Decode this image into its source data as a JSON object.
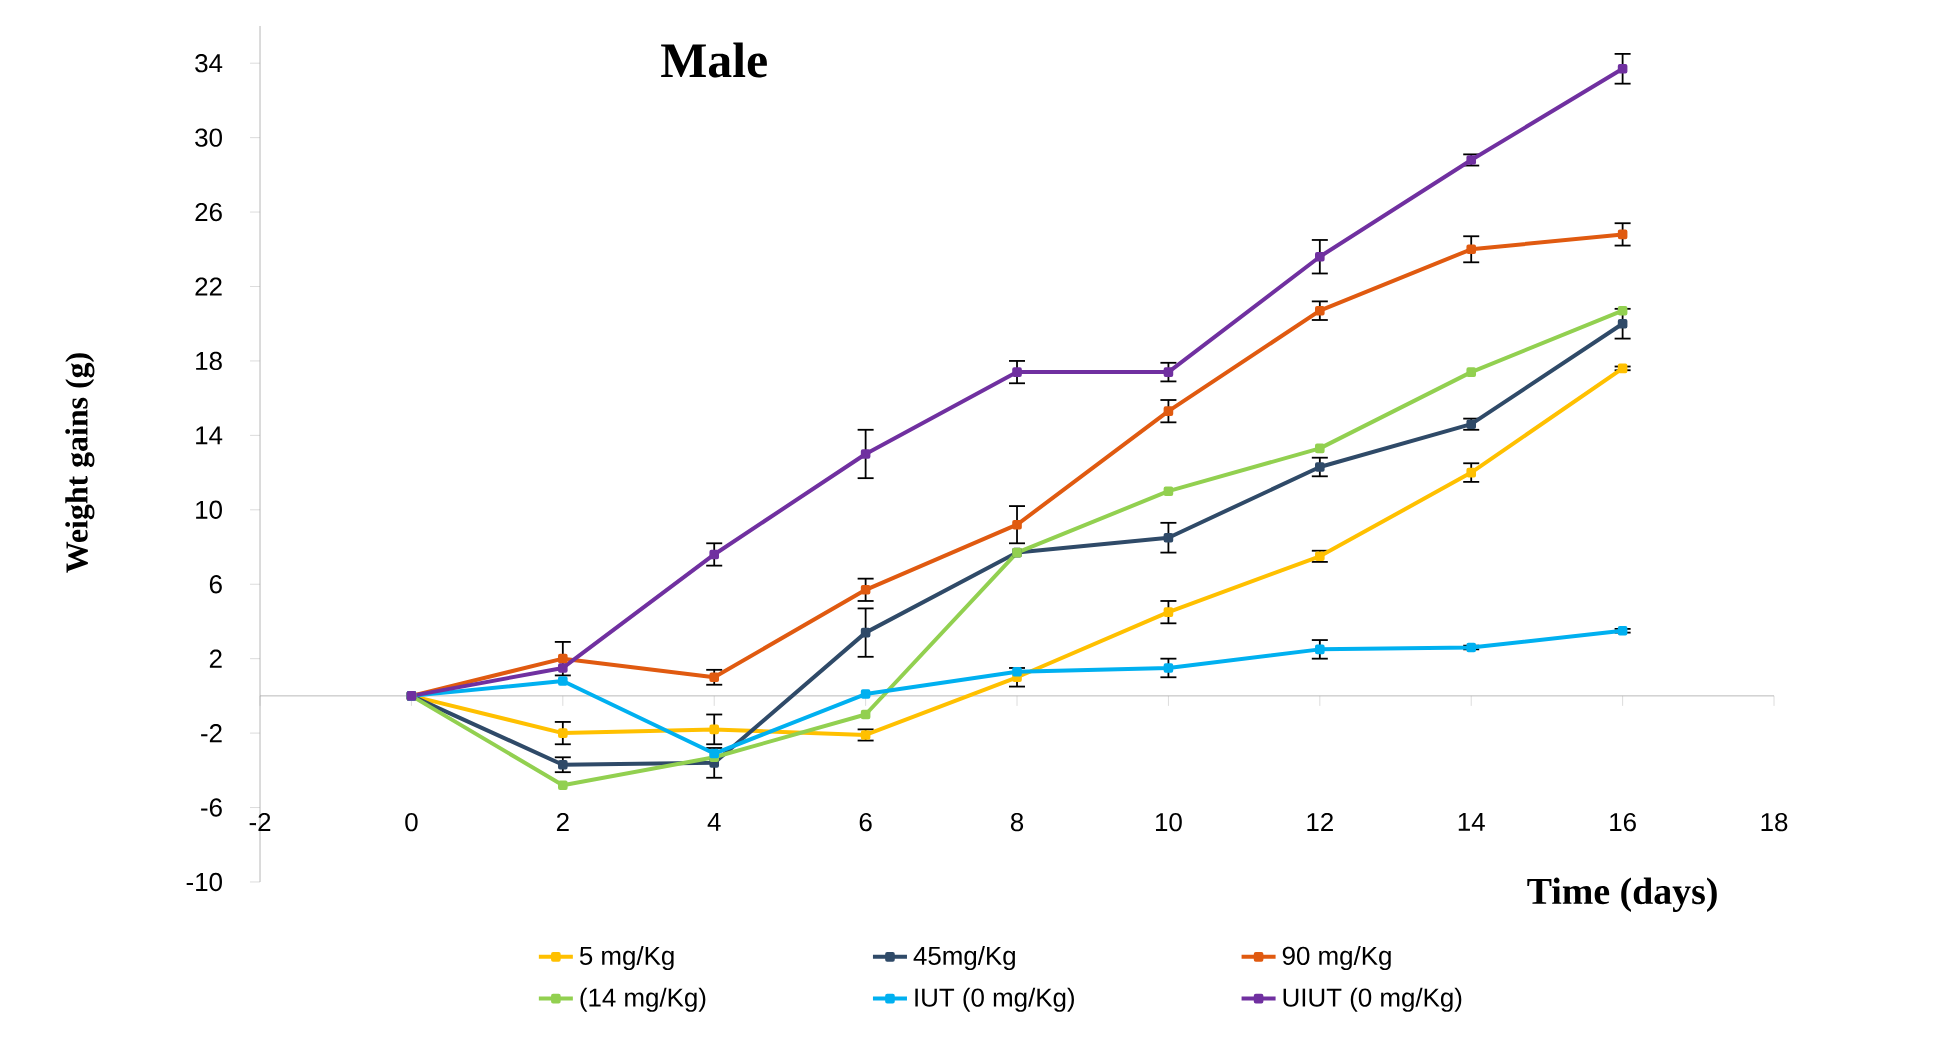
{
  "chart_data": {
    "type": "line",
    "title": "Male",
    "xlabel": "Time (days)",
    "ylabel": "Weight  gains (g)",
    "x": [
      0,
      2,
      4,
      6,
      8,
      10,
      12,
      14,
      16
    ],
    "xlim": [
      -2,
      18
    ],
    "xticks": [
      -2,
      0,
      2,
      4,
      6,
      8,
      10,
      12,
      14,
      16,
      18
    ],
    "ylim": [
      -10,
      36
    ],
    "yticks": [
      -10,
      -6,
      -2,
      2,
      6,
      10,
      14,
      18,
      22,
      26,
      30,
      34
    ],
    "legend": "bottom",
    "marker": "square",
    "line_style": "solid",
    "grid": false,
    "series": [
      {
        "name": "5 mg/Kg",
        "color": "#ffc000",
        "values": [
          0,
          -2,
          -1.8,
          -2.1,
          1,
          4.5,
          7.5,
          12,
          17.6
        ],
        "errors": [
          null,
          0.6,
          0.8,
          0.3,
          0.5,
          0.6,
          0.3,
          0.5,
          0.1
        ]
      },
      {
        "name": "45mg/Kg",
        "color": "#2f4a68",
        "values": [
          0,
          -3.7,
          -3.6,
          3.4,
          7.7,
          8.5,
          12.3,
          14.6,
          20
        ],
        "errors": [
          null,
          0.4,
          0.8,
          1.3,
          null,
          0.8,
          0.5,
          0.3,
          0.8
        ]
      },
      {
        "name": "90 mg/Kg",
        "color": "#e05a10",
        "values": [
          0,
          2,
          1,
          5.7,
          9.2,
          15.3,
          20.7,
          24,
          24.8
        ],
        "errors": [
          null,
          0.9,
          0.4,
          0.6,
          1,
          0.6,
          0.5,
          0.7,
          0.6
        ]
      },
      {
        "name": "(14 mg/Kg)",
        "color": "#92d050",
        "values": [
          0,
          -4.8,
          -3.3,
          -1,
          7.7,
          11,
          13.3,
          17.4,
          20.7
        ]
      },
      {
        "name": "IUT (0 mg/Kg)",
        "color": "#00b0f0",
        "values": [
          0,
          0.8,
          -3.1,
          0.1,
          1.3,
          1.5,
          2.5,
          2.6,
          3.5
        ],
        "errors": [
          null,
          null,
          null,
          null,
          null,
          0.5,
          0.5,
          0.1,
          0.1
        ]
      },
      {
        "name": "UIUT (0 mg/Kg)",
        "color": "#7030a0",
        "values": [
          0,
          1.5,
          7.6,
          13,
          17.4,
          17.4,
          23.6,
          28.8,
          33.7
        ],
        "errors": [
          null,
          null,
          0.6,
          1.3,
          0.6,
          0.5,
          0.9,
          0.3,
          0.8
        ]
      }
    ]
  }
}
